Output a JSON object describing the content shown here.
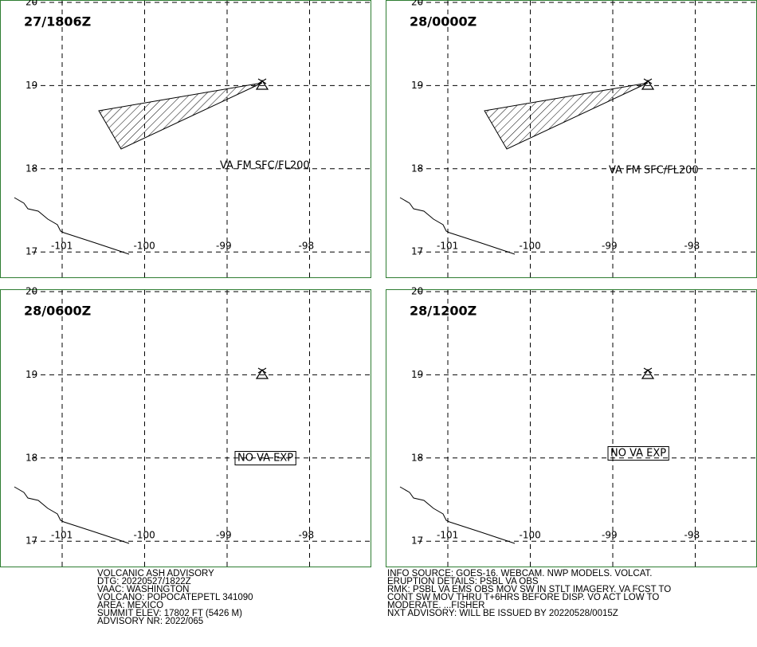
{
  "panels": [
    {
      "time": "27/1806Z",
      "annotation": "VA FM SFC/FL200"
    },
    {
      "time": "28/0000Z",
      "annotation": "VA FM SFC/FL200"
    },
    {
      "time": "28/0600Z",
      "annotation": "NO VA EXP"
    },
    {
      "time": "28/1200Z",
      "annotation": "NO VA EXP"
    }
  ],
  "lat_ticks": [
    20,
    19,
    18,
    17
  ],
  "lon_ticks": [
    -101,
    -100,
    -99,
    -98
  ],
  "advisory_left": [
    "VOLCANIC ASH ADVISORY",
    "DTG: 20220527/1822Z",
    "VAAC: WASHINGTON",
    "VOLCANO: POPOCATEPETL 341090",
    "AREA: MEXICO",
    "SUMMIT ELEV: 17802 FT (5426 M)",
    "ADVISORY NR: 2022/065"
  ],
  "advisory_right": [
    "INFO SOURCE: GOES-16. WEBCAM. NWP MODELS. VOLCAT.",
    "ERUPTION DETAILS: PSBL VA OBS",
    "RMK: PSBL VA EMS OBS MOV SW IN STLT IMAGERY. VA FCST TO",
    "CONT SW MOV THRU T+6HRS BEFORE DISP. VO ACT LOW TO",
    "MODERATE. ...FISHER",
    "NXT ADVISORY: WILL BE ISSUED BY 20220528/0015Z"
  ]
}
